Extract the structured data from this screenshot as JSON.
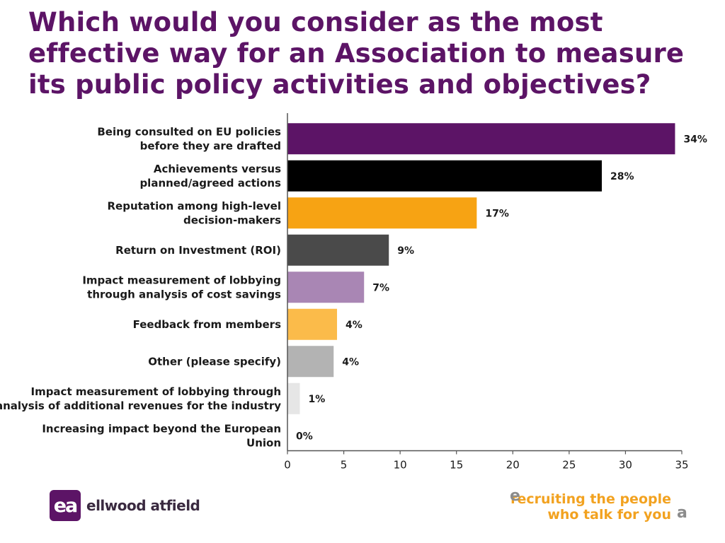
{
  "title": "Which would you consider as the most effective way for an Association to measure its public policy activities and objectives?",
  "chart_data": {
    "type": "bar",
    "orientation": "horizontal",
    "categories": [
      [
        "Being consulted on EU policies",
        "before they are drafted"
      ],
      [
        "Achievements versus",
        "planned/agreed actions"
      ],
      [
        "Reputation among high-level",
        "decision-makers"
      ],
      [
        "Return on Investment (ROI)"
      ],
      [
        "Impact measurement of lobbying",
        "through analysis of cost savings"
      ],
      [
        "Feedback from members"
      ],
      [
        "Other (please specify)"
      ],
      [
        "Impact measurement of lobbying through",
        "analysis of additional revenues for the industry"
      ],
      [
        "Increasing impact beyond the European",
        "Union"
      ]
    ],
    "values": [
      34.4,
      27.9,
      16.8,
      9.0,
      6.8,
      4.4,
      4.1,
      1.1,
      0
    ],
    "value_labels": [
      "34%",
      "28%",
      "17%",
      "9%",
      "7%",
      "4%",
      "4%",
      "1%",
      "0%"
    ],
    "colors": [
      "#5c1466",
      "#000000",
      "#f7a313",
      "#4a4a4a",
      "#a986b4",
      "#fbbb4a",
      "#b3b3b3",
      "#e6e6e6",
      "#ffffff"
    ],
    "xlim": [
      0,
      35
    ],
    "xticks": [
      "0",
      "5",
      "10",
      "15",
      "20",
      "25",
      "30",
      "35"
    ],
    "grid": false,
    "legend": "none"
  },
  "footer": {
    "logo_mark": "ea",
    "logo_text": "ellwood atfield",
    "tagline_line1": "recruiting the people",
    "tagline_line2": "who talk for you",
    "open_quote": "e",
    "close_quote": "a"
  }
}
